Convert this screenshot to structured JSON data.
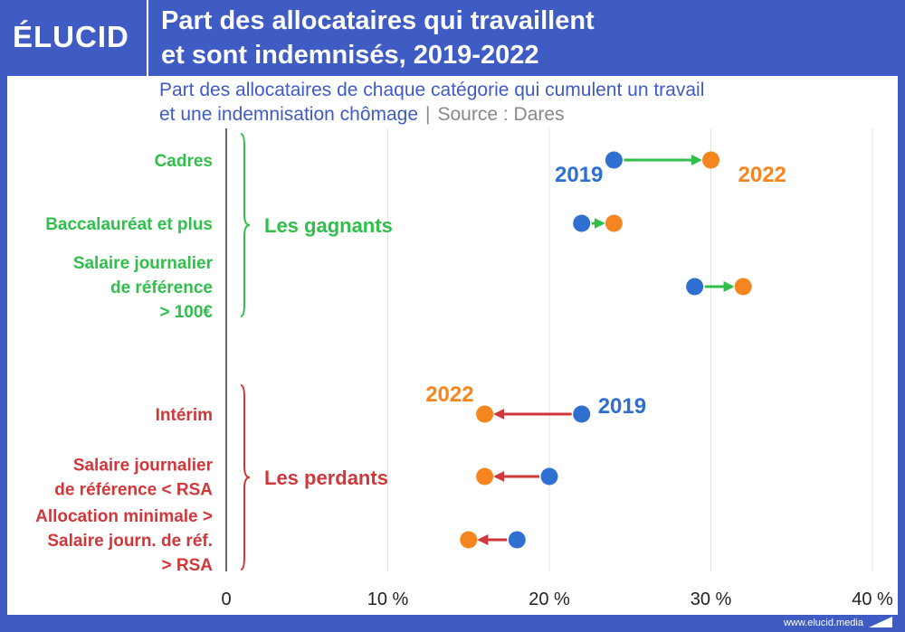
{
  "header": {
    "logo": "ÉLUCID",
    "title_line1": "Part des allocataires qui travaillent",
    "title_line2": "et sont indemnisés, 2019-2022"
  },
  "subtitle": {
    "line1": "Part des allocataires de chaque catégorie qui cumulent un travail",
    "line2": "et une indemnisation chômage",
    "separator": "|",
    "source": "Source : Dares"
  },
  "footer": {
    "site": "www.elucid.media"
  },
  "colors": {
    "y2019": "#2f6fd0",
    "y2022": "#f5861f",
    "gain": "#2fbf4a",
    "loss": "#d1373a",
    "grid": "#e3e3e3",
    "axis": "#333333"
  },
  "chart_data": {
    "type": "dumbbell",
    "title": "Part des allocataires qui travaillent et sont indemnisés, 2019-2022",
    "xlim": [
      0,
      40
    ],
    "xticks": [
      0,
      10,
      20,
      30,
      40
    ],
    "xtick_labels": [
      "0",
      "10 %",
      "20 %",
      "30 %",
      "40 %"
    ],
    "series_names": [
      "2019",
      "2022"
    ],
    "groups": [
      {
        "name": "Les gagnants",
        "color": "gain",
        "categories": [
          {
            "lines": [
              "Cadres"
            ],
            "v2019": 24,
            "v2022": 30
          },
          {
            "lines": [
              "Baccalauréat et plus"
            ],
            "v2019": 22,
            "v2022": 24
          },
          {
            "lines": [
              "Salaire journalier",
              "de référence",
              "> 100€"
            ],
            "v2019": 29,
            "v2022": 32
          }
        ]
      },
      {
        "name": "Les perdants",
        "color": "loss",
        "categories": [
          {
            "lines": [
              "Intérim"
            ],
            "v2019": 22,
            "v2022": 16
          },
          {
            "lines": [
              "Salaire journalier",
              "de référence < RSA"
            ],
            "v2019": 20,
            "v2022": 16
          },
          {
            "lines": [
              "Allocation minimale >",
              "Salaire journ. de réf.",
              "> RSA"
            ],
            "v2019": 18,
            "v2022": 15
          }
        ]
      }
    ],
    "annotations": [
      {
        "text": "2019",
        "series": "2019",
        "group": 0,
        "index": 0
      },
      {
        "text": "2022",
        "series": "2022",
        "group": 0,
        "index": 0
      },
      {
        "text": "2022",
        "series": "2022",
        "group": 1,
        "index": 0
      },
      {
        "text": "2019",
        "series": "2019",
        "group": 1,
        "index": 0
      }
    ]
  }
}
